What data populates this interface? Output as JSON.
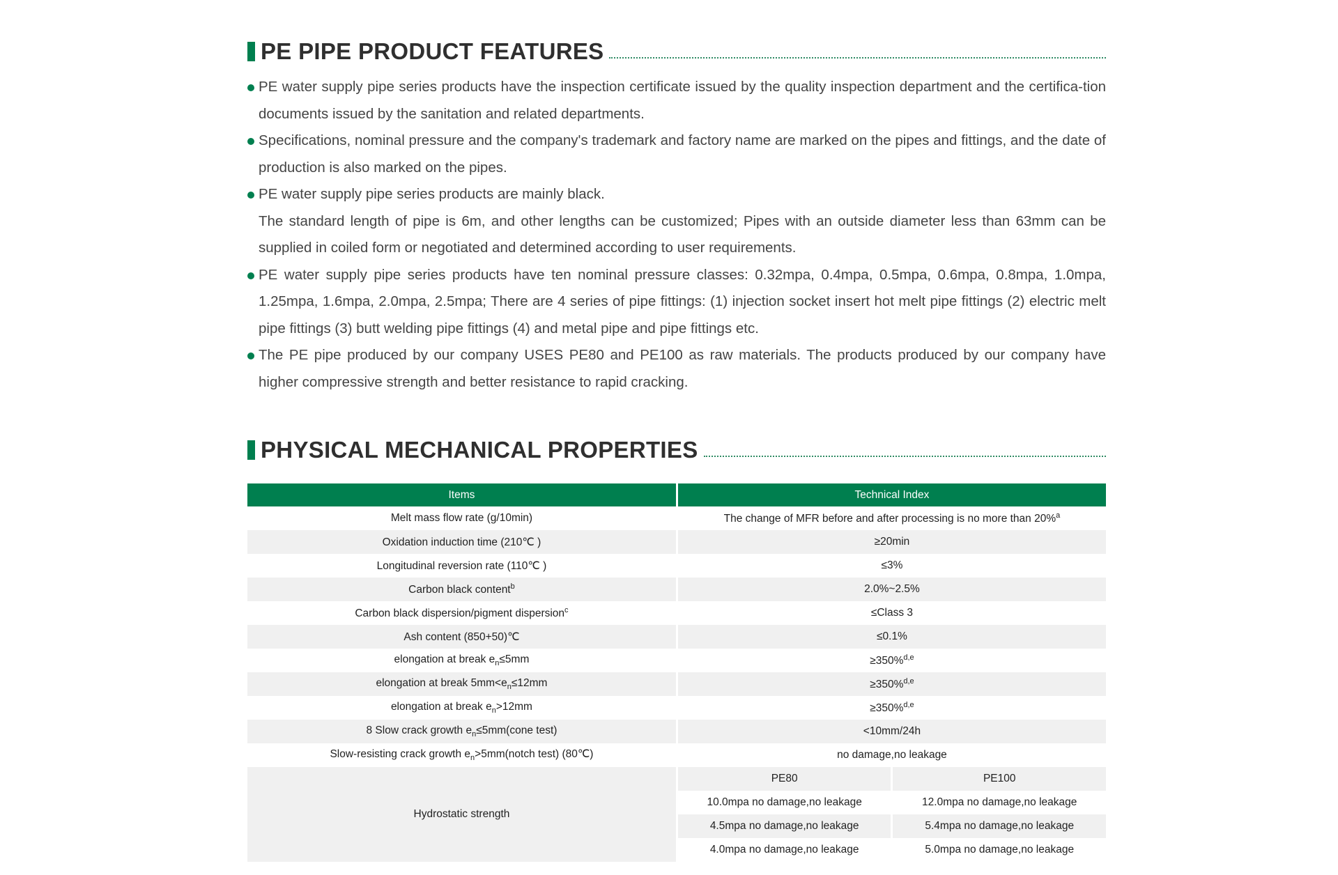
{
  "section1": {
    "title": "PE PIPE PRODUCT FEATURES",
    "bullets": [
      "PE water supply pipe series products have the inspection certificate issued by the quality inspection department and the certifica-tion documents issued by the sanitation and related departments.",
      "Specifications, nominal pressure and the company's trademark and factory name are marked on the pipes and fittings, and the date of production is also marked on the pipes.",
      "PE water supply pipe series products are mainly black.",
      "PE water supply pipe series products have ten nominal pressure classes: 0.32mpa, 0.4mpa, 0.5mpa, 0.6mpa, 0.8mpa, 1.0mpa, 1.25mpa, 1.6mpa, 2.0mpa, 2.5mpa; There are 4 series of pipe fittings: (1) injection socket insert hot melt pipe fittings (2) electric melt pipe fittings (3) butt welding pipe fittings (4) and metal pipe and pipe fittings etc.",
      "The PE pipe produced by our company USES PE80 and PE100 as raw materials. The products produced by our company have higher compressive strength and better resistance to rapid cracking."
    ],
    "bullet3_continuation": "The standard length of pipe is 6m, and other lengths can be customized; Pipes with an outside diameter less than 63mm can be supplied in coiled form or negotiated and determined according to user requirements."
  },
  "section2": {
    "title": "PHYSICAL MECHANICAL PROPERTIES",
    "headers": [
      "Items",
      "Technical Index"
    ],
    "rows": [
      {
        "item": "Melt mass flow rate (g/10min)",
        "item_sup": "",
        "index": "The change of MFR before and after processing is no more than 20%",
        "index_sup": "a"
      },
      {
        "item": "Oxidation induction time (210℃ )",
        "item_sup": "",
        "index": "≥20min",
        "index_sup": ""
      },
      {
        "item": "Longitudinal reversion rate (110℃ )",
        "item_sup": "",
        "index": "≤3%",
        "index_sup": ""
      },
      {
        "item": "Carbon black content",
        "item_sup": "b",
        "index": "2.0%~2.5%",
        "index_sup": ""
      },
      {
        "item": "Carbon black dispersion/pigment dispersion",
        "item_sup": "c",
        "index": "≤Class 3",
        "index_sup": ""
      },
      {
        "item": "Ash content (850+50)℃",
        "item_sup": "",
        "index": "≤0.1%",
        "index_sup": ""
      },
      {
        "item_pre": "elongation at break e",
        "item_sub": "n",
        "item_post": "≤5mm",
        "index": "≥350%",
        "index_sup": "d,e"
      },
      {
        "item_pre": "elongation at break 5mm<e",
        "item_sub": "n",
        "item_post": "≤12mm",
        "index": "≥350%",
        "index_sup": "d,e"
      },
      {
        "item_pre": "elongation at break e",
        "item_sub": "n",
        "item_post": ">12mm",
        "index": "≥350%",
        "index_sup": "d,e"
      },
      {
        "item_pre": "8 Slow crack growth e",
        "item_sub": "n",
        "item_post": "≤5mm(cone test)",
        "index": "<10mm/24h",
        "index_sup": ""
      },
      {
        "item_pre": "Slow-resisting crack growth e",
        "item_sub": "n",
        "item_post": ">5mm(notch test)  (80℃)",
        "index": "no damage,no leakage",
        "index_sup": ""
      }
    ],
    "hydrostatic": {
      "item": "Hydrostatic strength",
      "columns": [
        "PE80",
        "PE100"
      ],
      "values": [
        [
          "10.0mpa no damage,no leakage",
          "12.0mpa no damage,no leakage"
        ],
        [
          "4.5mpa no damage,no leakage",
          "5.4mpa no damage,no leakage"
        ],
        [
          "4.0mpa no damage,no leakage",
          "5.0mpa no damage,no leakage"
        ]
      ]
    }
  },
  "colors": {
    "accent": "#007f4f",
    "row_alt": "#f0f0f0"
  }
}
